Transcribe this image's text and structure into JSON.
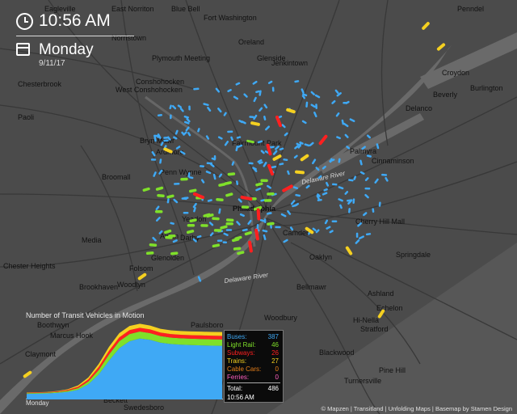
{
  "clock": {
    "time": "10:56 AM",
    "icon": "clock-icon"
  },
  "day": {
    "name": "Monday",
    "date": "9/11/17",
    "icon": "calendar-icon"
  },
  "map": {
    "places": [
      "Eagleville",
      "East Norriton",
      "Blue Bell",
      "Fort Washington",
      "Penndel",
      "Norristown",
      "Oreland",
      "Plymouth Meeting",
      "Glenside",
      "Jenkintown",
      "Croydon",
      "Conshohocken",
      "Chesterbrook",
      "West Conshohocken",
      "Burlington",
      "Beverly",
      "Delanco",
      "Paoli",
      "Bryn Mawr",
      "Palmyra",
      "Ardmore",
      "Cinnaminson",
      "Penn Wynne",
      "Broomall",
      "Yeadon",
      "Cherry Hill Mall",
      "Media",
      "Aldan",
      "Darby",
      "Camden",
      "Springdale",
      "Chester Heights",
      "Glenolden",
      "Folsom",
      "Oaklyn",
      "Brookhaven",
      "Woodlyn",
      "Bellmawr",
      "Ashland",
      "Echelon",
      "Woodbury",
      "Boothwyn",
      "Hi-Nella",
      "Marcus Hook",
      "Stratford",
      "Paulsboro",
      "Claymont",
      "Blackwood",
      "Pine Hill",
      "Turnersville",
      "Beckett",
      "Swedesboro",
      "Fairmount Park",
      "Philadelphia"
    ],
    "rivers": [
      "Delaware River",
      "Delaware River"
    ],
    "colors": {
      "bus": "#3fa9f5",
      "light_rail": "#7fe02a",
      "subway": "#ff2020",
      "train": "#f5d020",
      "ferry": "#ff60c0"
    }
  },
  "chart": {
    "title": "Number of Transit Vehicles in Motion",
    "x_start_label": "Monday"
  },
  "chart_data": {
    "type": "area",
    "title": "Number of Transit Vehicles in Motion",
    "xlabel": "Monday",
    "ylabel": "",
    "series": [
      {
        "name": "Buses",
        "color": "#3fa9f5",
        "values": [
          40,
          42,
          44,
          48,
          55,
          70,
          110,
          180,
          280,
          370,
          420,
          440,
          430,
          410,
          400,
          395,
          392,
          390,
          388,
          387
        ]
      },
      {
        "name": "Light Rail",
        "color": "#7fe02a",
        "values": [
          5,
          5,
          5,
          6,
          8,
          12,
          20,
          32,
          44,
          50,
          52,
          50,
          48,
          47,
          46,
          46,
          46,
          46,
          46,
          46
        ]
      },
      {
        "name": "Subways",
        "color": "#ff2020",
        "values": [
          3,
          3,
          3,
          4,
          6,
          10,
          15,
          22,
          27,
          28,
          28,
          27,
          27,
          26,
          26,
          26,
          26,
          26,
          26,
          26
        ]
      },
      {
        "name": "Trains",
        "color": "#f5d020",
        "values": [
          2,
          2,
          2,
          3,
          5,
          9,
          14,
          22,
          28,
          30,
          30,
          29,
          28,
          27,
          27,
          27,
          27,
          27,
          27,
          27
        ]
      },
      {
        "name": "Cable Cars",
        "color": "#e8801a",
        "values": [
          0,
          0,
          0,
          0,
          0,
          0,
          0,
          0,
          0,
          0,
          0,
          0,
          0,
          0,
          0,
          0,
          0,
          0,
          0,
          0
        ]
      },
      {
        "name": "Ferries",
        "color": "#ff60c0",
        "values": [
          0,
          0,
          0,
          0,
          0,
          0,
          0,
          0,
          0,
          0,
          0,
          0,
          0,
          0,
          0,
          0,
          0,
          0,
          0,
          0
        ]
      }
    ]
  },
  "legend": {
    "rows": [
      {
        "label": "Buses:",
        "value": "387",
        "color": "#3fa9f5"
      },
      {
        "label": "Light Rail:",
        "value": "46",
        "color": "#7fe02a"
      },
      {
        "label": "Subways:",
        "value": "26",
        "color": "#ff2020"
      },
      {
        "label": "Trains:",
        "value": "27",
        "color": "#f5d020"
      },
      {
        "label": "Cable Cars:",
        "value": "0",
        "color": "#e8801a"
      },
      {
        "label": "Ferries:",
        "value": "0",
        "color": "#ff60c0"
      }
    ],
    "total_label": "Total:",
    "total_value": "486",
    "time": "10:56 AM"
  },
  "footer": {
    "credits": "© Mapzen | Transitland | Unfolding Maps | Basemap by Stamen Design"
  }
}
